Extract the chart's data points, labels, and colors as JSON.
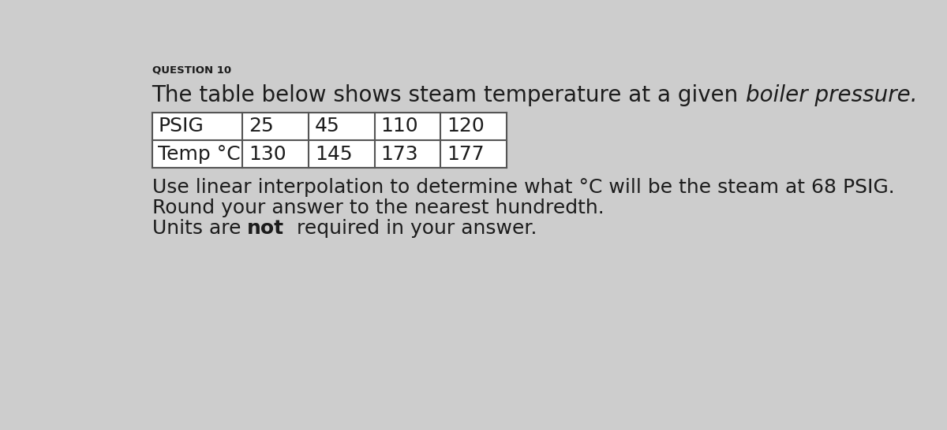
{
  "question_label": "QUESTION 10",
  "intro_normal": "The table below shows steam temperature at a given ",
  "intro_italic": "boiler pressure.",
  "table": {
    "row1_label": "PSIG",
    "row2_label": "Temp °C",
    "psig_values": [
      "25",
      "45",
      "110",
      "120"
    ],
    "temp_values": [
      "130",
      "145",
      "173",
      "177"
    ]
  },
  "line1": "Use linear interpolation to determine what °C will be the steam at 68 PSIG.",
  "line2": "Round your answer to the nearest hundredth.",
  "line3_pre": "Units are ",
  "line3_bold": "not",
  "line3_post": "  required in your answer.",
  "bg_color": "#cdcdcd",
  "text_color": "#1c1c1c",
  "table_border_color": "#555555",
  "table_fill": "#ffffff"
}
